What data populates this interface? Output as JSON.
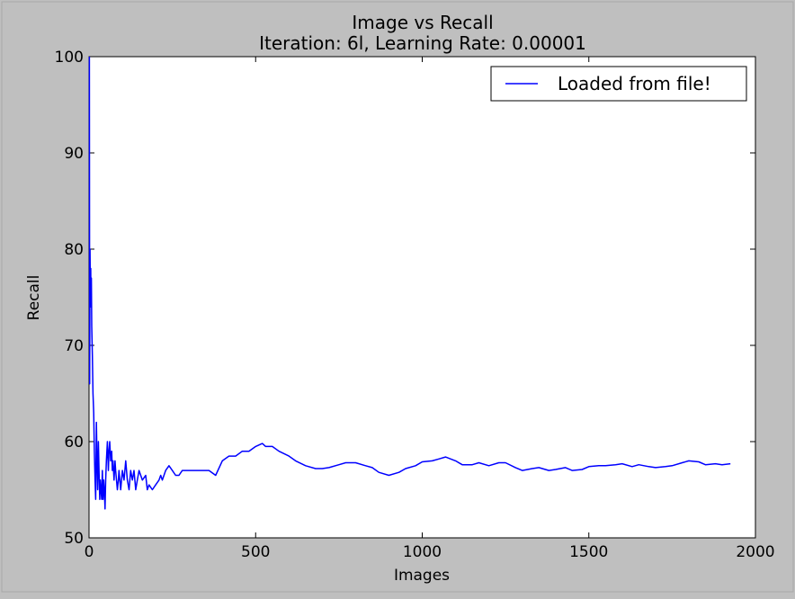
{
  "chart_data": {
    "type": "line",
    "title": "Image vs Recall",
    "subtitle": "Iteration: 6l, Learning Rate: 0.00001",
    "xlabel": "Images",
    "ylabel": "Recall",
    "xlim": [
      0,
      2000
    ],
    "ylim": [
      50,
      100
    ],
    "xticks": [
      0,
      500,
      1000,
      1500,
      2000
    ],
    "yticks": [
      50,
      60,
      70,
      80,
      90,
      100
    ],
    "grid": false,
    "legend": "top-right",
    "series": [
      {
        "name": "Loaded from file!",
        "color": "#0000ff",
        "x": [
          1,
          2,
          3,
          4,
          5,
          6,
          7,
          8,
          10,
          12,
          14,
          16,
          18,
          20,
          22,
          24,
          26,
          28,
          30,
          32,
          34,
          36,
          38,
          40,
          42,
          44,
          46,
          48,
          50,
          52,
          55,
          58,
          60,
          62,
          65,
          68,
          70,
          72,
          75,
          78,
          80,
          85,
          88,
          90,
          95,
          100,
          105,
          110,
          115,
          120,
          125,
          130,
          135,
          140,
          145,
          150,
          160,
          170,
          175,
          180,
          190,
          200,
          210,
          215,
          220,
          230,
          240,
          250,
          260,
          270,
          280,
          290,
          300,
          320,
          340,
          360,
          380,
          400,
          420,
          440,
          460,
          480,
          500,
          520,
          530,
          550,
          570,
          600,
          620,
          650,
          680,
          700,
          720,
          750,
          770,
          800,
          830,
          850,
          870,
          900,
          930,
          950,
          980,
          1000,
          1030,
          1050,
          1070,
          1100,
          1120,
          1150,
          1170,
          1200,
          1230,
          1250,
          1280,
          1300,
          1330,
          1350,
          1380,
          1400,
          1430,
          1450,
          1480,
          1500,
          1530,
          1550,
          1580,
          1600,
          1630,
          1650,
          1680,
          1700,
          1730,
          1750,
          1780,
          1800,
          1830,
          1850,
          1880,
          1900,
          1925
        ],
        "y": [
          100,
          66,
          80,
          75,
          78,
          74,
          77,
          72,
          69,
          65,
          63,
          59,
          56,
          54,
          62,
          58,
          55,
          60,
          57,
          54,
          56,
          55,
          54,
          57,
          54,
          56,
          55,
          53,
          56,
          58,
          60,
          57,
          59,
          60,
          58,
          59,
          57,
          58,
          56,
          58,
          57,
          55,
          56,
          57,
          55,
          57,
          56,
          58,
          56,
          55,
          57,
          56,
          57,
          55,
          56,
          57,
          56,
          56.5,
          55,
          55.5,
          55,
          55.5,
          56,
          56.5,
          56,
          57,
          57.5,
          57,
          56.5,
          56.5,
          57,
          57,
          57,
          57,
          57,
          57,
          56.5,
          58,
          58.5,
          58.5,
          59,
          59,
          59.5,
          59.8,
          59.5,
          59.5,
          59,
          58.5,
          58,
          57.5,
          57.2,
          57.2,
          57.3,
          57.6,
          57.8,
          57.8,
          57.5,
          57.3,
          56.8,
          56.5,
          56.8,
          57.2,
          57.5,
          57.9,
          58,
          58.2,
          58.4,
          58,
          57.6,
          57.6,
          57.8,
          57.5,
          57.8,
          57.8,
          57.3,
          57,
          57.2,
          57.3,
          57,
          57.1,
          57.3,
          57,
          57.1,
          57.4,
          57.5,
          57.5,
          57.6,
          57.7,
          57.4,
          57.6,
          57.4,
          57.3,
          57.4,
          57.5,
          57.8,
          58,
          57.9,
          57.6,
          57.7,
          57.6,
          57.7
        ]
      }
    ]
  }
}
